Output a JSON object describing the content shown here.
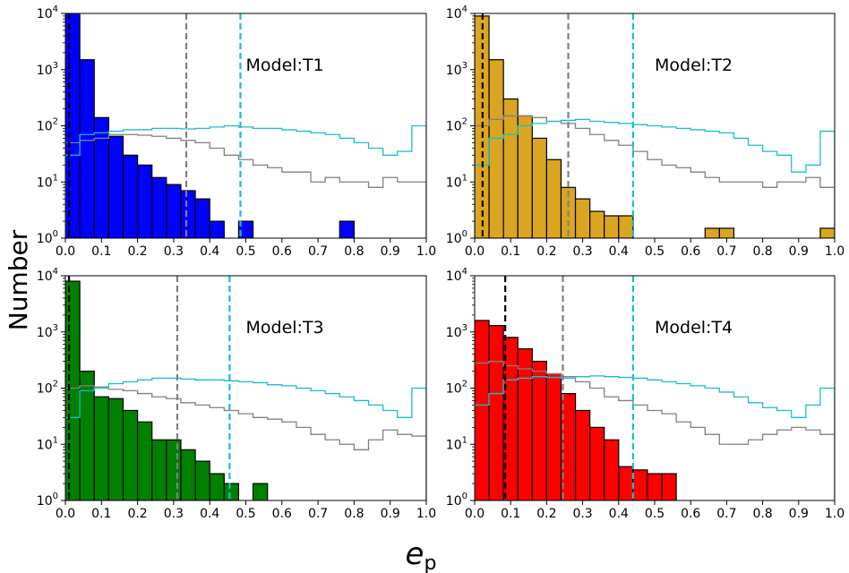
{
  "figure": {
    "ylabel": "Number",
    "xlabel_main": "e",
    "xlabel_sub": "p"
  },
  "colors": {
    "T1": "#0000ff",
    "T2": "#daa520",
    "T3": "#008000",
    "T4": "#ff0000",
    "cyan": "#17becf",
    "gray": "#808080",
    "median_black": "#000000"
  },
  "chart_data": [
    {
      "type": "bar",
      "title": "Model:T1",
      "fill_key": "T1",
      "xlim": [
        0,
        1
      ],
      "ylim_log10": [
        0,
        4
      ],
      "x_ticks": [
        "0.0",
        "0.1",
        "0.2",
        "0.3",
        "0.4",
        "0.5",
        "0.6",
        "0.7",
        "0.8",
        "0.9",
        "1.0"
      ],
      "y_ticks": [
        {
          "base": "10",
          "exp": "0"
        },
        {
          "base": "10",
          "exp": "1"
        },
        {
          "base": "10",
          "exp": "2"
        },
        {
          "base": "10",
          "exp": "3"
        },
        {
          "base": "10",
          "exp": "4"
        }
      ],
      "bin_width": 0.04,
      "hist_values": [
        10000,
        1500,
        140,
        65,
        30,
        20,
        12,
        9,
        7,
        5,
        2,
        0,
        2,
        0,
        0,
        0,
        0,
        0,
        0,
        2,
        0,
        0,
        0,
        0,
        0
      ],
      "cyan_step": [
        30,
        70,
        75,
        80,
        85,
        85,
        90,
        90,
        88,
        90,
        95,
        100,
        95,
        90,
        90,
        85,
        80,
        75,
        70,
        60,
        50,
        40,
        30,
        35,
        100
      ],
      "gray_step": [
        50,
        55,
        60,
        70,
        70,
        68,
        65,
        60,
        55,
        50,
        40,
        30,
        25,
        20,
        18,
        15,
        15,
        10,
        12,
        10,
        10,
        8,
        12,
        10,
        10
      ],
      "vlines": {
        "black": 0.01,
        "gray": 0.335,
        "cyan": 0.485
      }
    },
    {
      "type": "bar",
      "title": "Model:T2",
      "fill_key": "T2",
      "xlim": [
        0,
        1
      ],
      "ylim_log10": [
        0,
        4
      ],
      "x_ticks": [
        "0.0",
        "0.1",
        "0.2",
        "0.3",
        "0.4",
        "0.5",
        "0.6",
        "0.7",
        "0.8",
        "0.9",
        "1.0"
      ],
      "y_ticks": [
        {
          "base": "10",
          "exp": "0"
        },
        {
          "base": "10",
          "exp": "1"
        },
        {
          "base": "10",
          "exp": "2"
        },
        {
          "base": "10",
          "exp": "3"
        },
        {
          "base": "10",
          "exp": "4"
        }
      ],
      "bin_width": 0.04,
      "hist_values": [
        9000,
        1500,
        300,
        150,
        60,
        25,
        8,
        5,
        3,
        2.5,
        2.5,
        0,
        0,
        0,
        0,
        0,
        1.5,
        1.5,
        0,
        0,
        0,
        0,
        0,
        0,
        1.5
      ],
      "cyan_step": [
        20,
        60,
        70,
        100,
        110,
        120,
        125,
        130,
        120,
        115,
        110,
        105,
        100,
        95,
        90,
        85,
        80,
        75,
        60,
        45,
        35,
        30,
        15,
        20,
        80
      ],
      "gray_step": [
        100,
        130,
        150,
        150,
        140,
        120,
        110,
        90,
        70,
        55,
        45,
        35,
        25,
        20,
        18,
        15,
        12,
        10,
        10,
        10,
        8,
        10,
        10,
        12,
        8
      ],
      "vlines": {
        "black": 0.022,
        "gray": 0.26,
        "cyan": 0.44
      }
    },
    {
      "type": "bar",
      "title": "Model:T3",
      "fill_key": "T3",
      "xlim": [
        0,
        1
      ],
      "ylim_log10": [
        0,
        4
      ],
      "x_ticks": [
        "0.0",
        "0.1",
        "0.2",
        "0.3",
        "0.4",
        "0.5",
        "0.6",
        "0.7",
        "0.8",
        "0.9",
        "1.0"
      ],
      "y_ticks": [
        {
          "base": "10",
          "exp": "0"
        },
        {
          "base": "10",
          "exp": "1"
        },
        {
          "base": "10",
          "exp": "2"
        },
        {
          "base": "10",
          "exp": "3"
        },
        {
          "base": "10",
          "exp": "4"
        }
      ],
      "bin_width": 0.04,
      "hist_values": [
        8000,
        200,
        70,
        65,
        40,
        25,
        12,
        12,
        8,
        5,
        3,
        2,
        0,
        2,
        0,
        0,
        0,
        0,
        0,
        0,
        0,
        0,
        0,
        0,
        0
      ],
      "cyan_step": [
        30,
        90,
        100,
        120,
        130,
        140,
        150,
        150,
        145,
        140,
        140,
        135,
        130,
        125,
        115,
        110,
        100,
        90,
        80,
        70,
        60,
        50,
        40,
        30,
        100
      ],
      "gray_step": [
        100,
        110,
        105,
        95,
        90,
        80,
        70,
        65,
        55,
        50,
        45,
        40,
        35,
        30,
        28,
        25,
        20,
        15,
        12,
        10,
        8,
        12,
        18,
        15,
        14
      ],
      "vlines": {
        "black": 0.01,
        "gray": 0.31,
        "cyan": 0.455
      }
    },
    {
      "type": "bar",
      "title": "Model:T4",
      "fill_key": "T4",
      "xlim": [
        0,
        1
      ],
      "ylim_log10": [
        0,
        4
      ],
      "x_ticks": [
        "0.0",
        "0.1",
        "0.2",
        "0.3",
        "0.4",
        "0.5",
        "0.6",
        "0.7",
        "0.8",
        "0.9",
        "1.0"
      ],
      "y_ticks": [
        {
          "base": "10",
          "exp": "0"
        },
        {
          "base": "10",
          "exp": "1"
        },
        {
          "base": "10",
          "exp": "2"
        },
        {
          "base": "10",
          "exp": "3"
        },
        {
          "base": "10",
          "exp": "4"
        }
      ],
      "bin_width": 0.04,
      "hist_values": [
        1600,
        1300,
        800,
        500,
        300,
        180,
        80,
        40,
        20,
        12,
        4,
        3.5,
        3,
        3,
        0,
        0,
        0,
        0,
        0,
        0,
        0,
        0,
        0,
        0,
        0
      ],
      "cyan_step": [
        50,
        80,
        140,
        150,
        160,
        155,
        150,
        160,
        165,
        160,
        155,
        150,
        140,
        130,
        120,
        110,
        100,
        85,
        70,
        55,
        45,
        40,
        30,
        50,
        100
      ],
      "gray_step": [
        280,
        300,
        250,
        220,
        200,
        180,
        160,
        130,
        100,
        70,
        60,
        50,
        40,
        35,
        25,
        20,
        15,
        10,
        10,
        12,
        15,
        18,
        20,
        18,
        15
      ],
      "vlines": {
        "black": 0.085,
        "gray": 0.245,
        "cyan": 0.44
      }
    }
  ]
}
